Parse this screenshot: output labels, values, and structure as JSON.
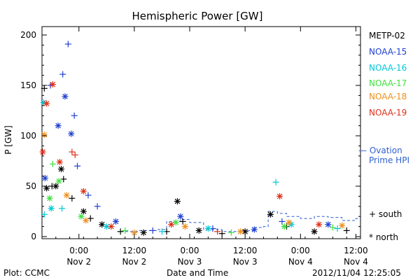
{
  "chart_data": {
    "type": "scatter",
    "title": "Hemispheric Power [GW]",
    "ylabel": "P [GW]",
    "xlabel": "Date and Time",
    "xlim": [
      "2012-11-01 16:00",
      "2012-11-04 13:00"
    ],
    "ylim": [
      0,
      210
    ],
    "y_ticks": [
      "0",
      "50",
      "100",
      "150",
      "200"
    ],
    "x_ticks": [
      {
        "time": "2012-11-02 00:00",
        "label_top": "0:00",
        "label_bottom": "Nov 2"
      },
      {
        "time": "2012-11-02 12:00",
        "label_top": "12:00",
        "label_bottom": "Nov 2"
      },
      {
        "time": "2012-11-03 00:00",
        "label_top": "0:00",
        "label_bottom": "Nov 3"
      },
      {
        "time": "2012-11-03 12:00",
        "label_top": "12:00",
        "label_bottom": "Nov 3"
      },
      {
        "time": "2012-11-04 00:00",
        "label_top": "0:00",
        "label_bottom": "Nov 4"
      },
      {
        "time": "2012-11-04 12:00",
        "label_top": "12:00",
        "label_bottom": "Nov 4"
      }
    ],
    "symbol_legend": {
      "south": "+ south",
      "north": "* north"
    },
    "series": [
      {
        "name": "METP-02",
        "color": "#000000",
        "points": [
          {
            "t": "2012-11-01 16:30",
            "y": 147,
            "hemi": "south"
          },
          {
            "t": "2012-11-01 17:00",
            "y": 48,
            "hemi": "north"
          },
          {
            "t": "2012-11-01 18:10",
            "y": 50,
            "hemi": "south"
          },
          {
            "t": "2012-11-01 19:00",
            "y": 50,
            "hemi": "north"
          },
          {
            "t": "2012-11-01 20:10",
            "y": 67,
            "hemi": "north"
          },
          {
            "t": "2012-11-01 20:40",
            "y": 57,
            "hemi": "south"
          },
          {
            "t": "2012-11-01 22:30",
            "y": 38,
            "hemi": "south"
          },
          {
            "t": "2012-11-02 01:00",
            "y": 25,
            "hemi": "north"
          },
          {
            "t": "2012-11-02 02:30",
            "y": 18,
            "hemi": "south"
          },
          {
            "t": "2012-11-02 05:00",
            "y": 12,
            "hemi": "north"
          },
          {
            "t": "2012-11-02 09:00",
            "y": 5,
            "hemi": "south"
          },
          {
            "t": "2012-11-02 14:00",
            "y": 4,
            "hemi": "north"
          },
          {
            "t": "2012-11-02 19:00",
            "y": 5,
            "hemi": "south"
          },
          {
            "t": "2012-11-02 21:20",
            "y": 35,
            "hemi": "north"
          },
          {
            "t": "2012-11-02 22:30",
            "y": 15,
            "hemi": "south"
          },
          {
            "t": "2012-11-03 02:00",
            "y": 6,
            "hemi": "north"
          },
          {
            "t": "2012-11-03 07:00",
            "y": 3,
            "hemi": "south"
          },
          {
            "t": "2012-11-03 12:00",
            "y": 5,
            "hemi": "north"
          },
          {
            "t": "2012-11-03 17:30",
            "y": 22,
            "hemi": "north"
          },
          {
            "t": "2012-11-03 21:00",
            "y": 10,
            "hemi": "south"
          },
          {
            "t": "2012-11-04 03:00",
            "y": 5,
            "hemi": "north"
          },
          {
            "t": "2012-11-04 10:00",
            "y": 6,
            "hemi": "south"
          }
        ]
      },
      {
        "name": "NOAA-15",
        "color": "#1f3fd0",
        "points": [
          {
            "t": "2012-11-01 16:40",
            "y": 58,
            "hemi": "north"
          },
          {
            "t": "2012-11-01 17:50",
            "y": 150,
            "hemi": "south"
          },
          {
            "t": "2012-11-01 19:30",
            "y": 110,
            "hemi": "north"
          },
          {
            "t": "2012-11-01 20:30",
            "y": 161,
            "hemi": "south"
          },
          {
            "t": "2012-11-01 21:00",
            "y": 139,
            "hemi": "north"
          },
          {
            "t": "2012-11-01 21:40",
            "y": 191,
            "hemi": "south"
          },
          {
            "t": "2012-11-01 22:20",
            "y": 102,
            "hemi": "north"
          },
          {
            "t": "2012-11-01 23:00",
            "y": 120,
            "hemi": "south"
          },
          {
            "t": "2012-11-01 23:40",
            "y": 70,
            "hemi": "south"
          },
          {
            "t": "2012-11-02 02:00",
            "y": 41,
            "hemi": "south"
          },
          {
            "t": "2012-11-02 04:00",
            "y": 30,
            "hemi": "south"
          },
          {
            "t": "2012-11-02 08:00",
            "y": 15,
            "hemi": "north"
          },
          {
            "t": "2012-11-02 16:00",
            "y": 6,
            "hemi": "south"
          },
          {
            "t": "2012-11-02 22:00",
            "y": 20,
            "hemi": "north"
          },
          {
            "t": "2012-11-03 05:00",
            "y": 8,
            "hemi": "south"
          },
          {
            "t": "2012-11-03 14:00",
            "y": 7,
            "hemi": "north"
          },
          {
            "t": "2012-11-03 20:00",
            "y": 15,
            "hemi": "south"
          },
          {
            "t": "2012-11-04 06:00",
            "y": 12,
            "hemi": "north"
          }
        ]
      },
      {
        "name": "NOAA-16",
        "color": "#00c8d8",
        "points": [
          {
            "t": "2012-11-01 16:20",
            "y": 133,
            "hemi": "north"
          },
          {
            "t": "2012-11-01 16:30",
            "y": 22,
            "hemi": "south"
          },
          {
            "t": "2012-11-01 18:00",
            "y": 28,
            "hemi": "north"
          },
          {
            "t": "2012-11-01 20:20",
            "y": 28,
            "hemi": "south"
          },
          {
            "t": "2012-11-02 06:00",
            "y": 10,
            "hemi": "north"
          },
          {
            "t": "2012-11-02 18:00",
            "y": 5,
            "hemi": "south"
          },
          {
            "t": "2012-11-03 04:00",
            "y": 8,
            "hemi": "north"
          },
          {
            "t": "2012-11-03 18:40",
            "y": 54,
            "hemi": "south"
          },
          {
            "t": "2012-11-03 22:00",
            "y": 12,
            "hemi": "north"
          },
          {
            "t": "2012-11-04 08:00",
            "y": 8,
            "hemi": "south"
          }
        ]
      },
      {
        "name": "NOAA-17",
        "color": "#40e040",
        "points": [
          {
            "t": "2012-11-01 17:40",
            "y": 38,
            "hemi": "north"
          },
          {
            "t": "2012-11-01 18:20",
            "y": 72,
            "hemi": "south"
          },
          {
            "t": "2012-11-01 19:40",
            "y": 55,
            "hemi": "north"
          },
          {
            "t": "2012-11-02 00:30",
            "y": 20,
            "hemi": "north"
          },
          {
            "t": "2012-11-02 10:00",
            "y": 6,
            "hemi": "south"
          },
          {
            "t": "2012-11-02 21:00",
            "y": 14,
            "hemi": "north"
          },
          {
            "t": "2012-11-03 09:00",
            "y": 4,
            "hemi": "south"
          },
          {
            "t": "2012-11-03 20:30",
            "y": 10,
            "hemi": "north"
          },
          {
            "t": "2012-11-04 07:00",
            "y": 9,
            "hemi": "south"
          }
        ]
      },
      {
        "name": "NOAA-18",
        "color": "#f0901c",
        "points": [
          {
            "t": "2012-11-01 16:30",
            "y": 101,
            "hemi": "north"
          },
          {
            "t": "2012-11-01 21:20",
            "y": 41,
            "hemi": "north"
          },
          {
            "t": "2012-11-02 01:30",
            "y": 16,
            "hemi": "north"
          },
          {
            "t": "2012-11-02 12:00",
            "y": 4,
            "hemi": "north"
          },
          {
            "t": "2012-11-02 23:00",
            "y": 10,
            "hemi": "north"
          },
          {
            "t": "2012-11-03 11:00",
            "y": 5,
            "hemi": "north"
          },
          {
            "t": "2012-11-03 21:30",
            "y": 14,
            "hemi": "north"
          },
          {
            "t": "2012-11-04 09:00",
            "y": 11,
            "hemi": "north"
          }
        ]
      },
      {
        "name": "NOAA-19",
        "color": "#e03018",
        "points": [
          {
            "t": "2012-11-01 16:10",
            "y": 84,
            "hemi": "north"
          },
          {
            "t": "2012-11-01 17:00",
            "y": 132,
            "hemi": "north"
          },
          {
            "t": "2012-11-01 18:20",
            "y": 151,
            "hemi": "north"
          },
          {
            "t": "2012-11-01 19:50",
            "y": 74,
            "hemi": "north"
          },
          {
            "t": "2012-11-01 22:30",
            "y": 84,
            "hemi": "south"
          },
          {
            "t": "2012-11-01 23:10",
            "y": 81,
            "hemi": "south"
          },
          {
            "t": "2012-11-02 01:00",
            "y": 45,
            "hemi": "north"
          },
          {
            "t": "2012-11-02 07:00",
            "y": 10,
            "hemi": "north"
          },
          {
            "t": "2012-11-02 20:00",
            "y": 12,
            "hemi": "north"
          },
          {
            "t": "2012-11-03 06:00",
            "y": 5,
            "hemi": "south"
          },
          {
            "t": "2012-11-03 19:30",
            "y": 40,
            "hemi": "north"
          },
          {
            "t": "2012-11-04 04:00",
            "y": 12,
            "hemi": "north"
          }
        ]
      }
    ],
    "ovation": {
      "name": "Ovation Prime HPI",
      "legend_line1": "— Ovation",
      "legend_line2": "Prime HPI",
      "color": "#3060d0",
      "points": [
        {
          "t": "2012-11-02 09:00",
          "y": 5
        },
        {
          "t": "2012-11-02 13:00",
          "y": 6
        },
        {
          "t": "2012-11-02 17:00",
          "y": 7
        },
        {
          "t": "2012-11-02 19:00",
          "y": 15
        },
        {
          "t": "2012-11-02 22:00",
          "y": 17
        },
        {
          "t": "2012-11-03 00:00",
          "y": 14
        },
        {
          "t": "2012-11-03 03:00",
          "y": 7
        },
        {
          "t": "2012-11-03 07:00",
          "y": 5
        },
        {
          "t": "2012-11-03 11:00",
          "y": 6
        },
        {
          "t": "2012-11-03 14:00",
          "y": 9
        },
        {
          "t": "2012-11-03 16:00",
          "y": 10
        },
        {
          "t": "2012-11-03 17:00",
          "y": 25
        },
        {
          "t": "2012-11-03 19:00",
          "y": 23
        },
        {
          "t": "2012-11-03 21:00",
          "y": 20
        },
        {
          "t": "2012-11-04 00:00",
          "y": 18
        },
        {
          "t": "2012-11-04 03:00",
          "y": 20
        },
        {
          "t": "2012-11-04 06:00",
          "y": 19
        },
        {
          "t": "2012-11-04 09:00",
          "y": 16
        },
        {
          "t": "2012-11-04 12:00",
          "y": 18
        }
      ]
    }
  },
  "footer": {
    "left": "Plot: CCMC",
    "center": "Date and Time",
    "right": "2012/11/04 12:25:05"
  }
}
